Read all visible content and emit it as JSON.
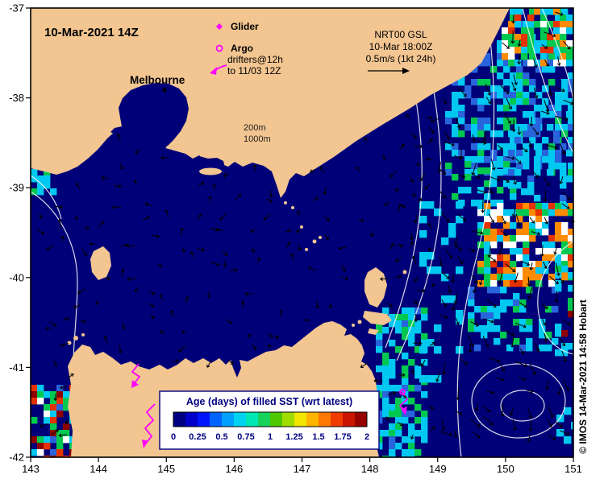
{
  "annotations": {
    "datestamp": "10-Mar-2021 14Z",
    "melbourne": "Melbourne",
    "glider_label": "Glider",
    "argo_label": "Argo",
    "drifters_line1": "drifters@12h",
    "drifters_line2": "to 11/03 12Z",
    "gsl_line1": "NRT00 GSL",
    "gsl_line2": "10-Mar 18:00Z",
    "gsl_line3": "0.5m/s (1kt 24h)",
    "contour_label_200": "200m",
    "contour_label_1000": "1000m",
    "credit": "© IMOS 14-Mar-2021 14:58 Hobart"
  },
  "legend": {
    "title": "Age (days) of filled SST (wrt latest)",
    "ticks": [
      "0",
      "0.25",
      "0.5",
      "0.75",
      "1",
      "1.25",
      "1.5",
      "1.75",
      "2"
    ],
    "colors": [
      "#000082",
      "#0000c8",
      "#0014ff",
      "#0064ff",
      "#00a0ff",
      "#00d2f0",
      "#00e6b4",
      "#14d25a",
      "#50c800",
      "#a0dc00",
      "#f0e600",
      "#ffb400",
      "#ff7800",
      "#f03c00",
      "#c81400",
      "#960000"
    ]
  },
  "axes": {
    "x_ticks": [
      "143",
      "144",
      "145",
      "146",
      "147",
      "148",
      "149",
      "150",
      "151"
    ],
    "y_ticks": [
      "-37",
      "-38",
      "-39",
      "-40",
      "-41",
      "-42"
    ]
  },
  "colors": {
    "land": "#f2c591",
    "ocean": "#000078",
    "cyan": "#00c8f0",
    "blue": "#2864dc",
    "green": "#00c850",
    "orange": "#ff8c00",
    "red": "#e63200",
    "dark_red": "#8c0000",
    "white": "#ffffff",
    "magenta": "#ff00ff",
    "navy_text": "#000080"
  }
}
